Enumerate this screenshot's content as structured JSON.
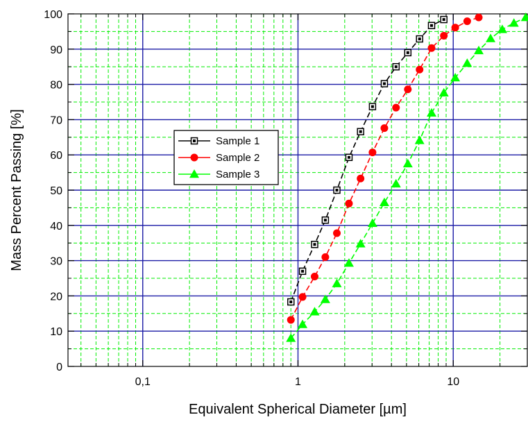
{
  "chart_data": {
    "type": "scatter",
    "title": "",
    "xlabel": "Equivalent Spherical Diameter [µm]",
    "ylabel": "Mass Percent Passing [%]",
    "xscale": "log",
    "xlim": [
      0.033,
      30
    ],
    "ylim": [
      0,
      100
    ],
    "grid": true,
    "legend_position": "left-middle",
    "x_ticks": [
      {
        "value": 0.1,
        "label": "0,1"
      },
      {
        "value": 1,
        "label": "1"
      },
      {
        "value": 10,
        "label": "10"
      }
    ],
    "y_ticks": [
      {
        "value": 0,
        "label": "0"
      },
      {
        "value": 10,
        "label": "10"
      },
      {
        "value": 20,
        "label": "20"
      },
      {
        "value": 30,
        "label": "30"
      },
      {
        "value": 40,
        "label": "40"
      },
      {
        "value": 50,
        "label": "50"
      },
      {
        "value": 60,
        "label": "60"
      },
      {
        "value": 70,
        "label": "70"
      },
      {
        "value": 80,
        "label": "80"
      },
      {
        "value": 90,
        "label": "90"
      },
      {
        "value": 100,
        "label": "100"
      }
    ],
    "series": [
      {
        "name": "Sample 1",
        "color": "#000000",
        "marker": "square",
        "x": [
          0.9,
          1.07,
          1.28,
          1.5,
          1.78,
          2.13,
          2.53,
          3.02,
          3.6,
          4.28,
          5.1,
          6.07,
          7.25,
          8.7
        ],
        "y": [
          18.3,
          27,
          34.6,
          41.5,
          50,
          59.3,
          66.6,
          73.7,
          80.2,
          85,
          89,
          92.9,
          96.7,
          98.4
        ]
      },
      {
        "name": "Sample 2",
        "color": "#ff0000",
        "marker": "circle",
        "x": [
          0.9,
          1.07,
          1.28,
          1.5,
          1.78,
          2.13,
          2.53,
          3.02,
          3.6,
          4.28,
          5.1,
          6.07,
          7.25,
          8.7,
          10.3,
          12.3,
          14.6
        ],
        "y": [
          13.2,
          19.7,
          25.5,
          31,
          37.8,
          46.2,
          53.3,
          60.7,
          67.6,
          73.4,
          78.6,
          84.2,
          90.3,
          93.8,
          96.1,
          97.9,
          99
        ]
      },
      {
        "name": "Sample 3",
        "color": "#00ff00",
        "marker": "triangle",
        "x": [
          0.9,
          1.07,
          1.28,
          1.5,
          1.78,
          2.13,
          2.53,
          3.02,
          3.6,
          4.28,
          5.1,
          6.07,
          7.25,
          8.7,
          10.3,
          12.3,
          14.6,
          17.4,
          20.7,
          24.6,
          29.3
        ],
        "y": [
          8,
          11.9,
          15.5,
          19,
          23.5,
          29.3,
          34.8,
          40.6,
          46.5,
          51.8,
          57.5,
          64.1,
          71.9,
          77.6,
          81.9,
          86,
          89.6,
          93,
          95.6,
          97.4,
          99
        ]
      }
    ]
  }
}
